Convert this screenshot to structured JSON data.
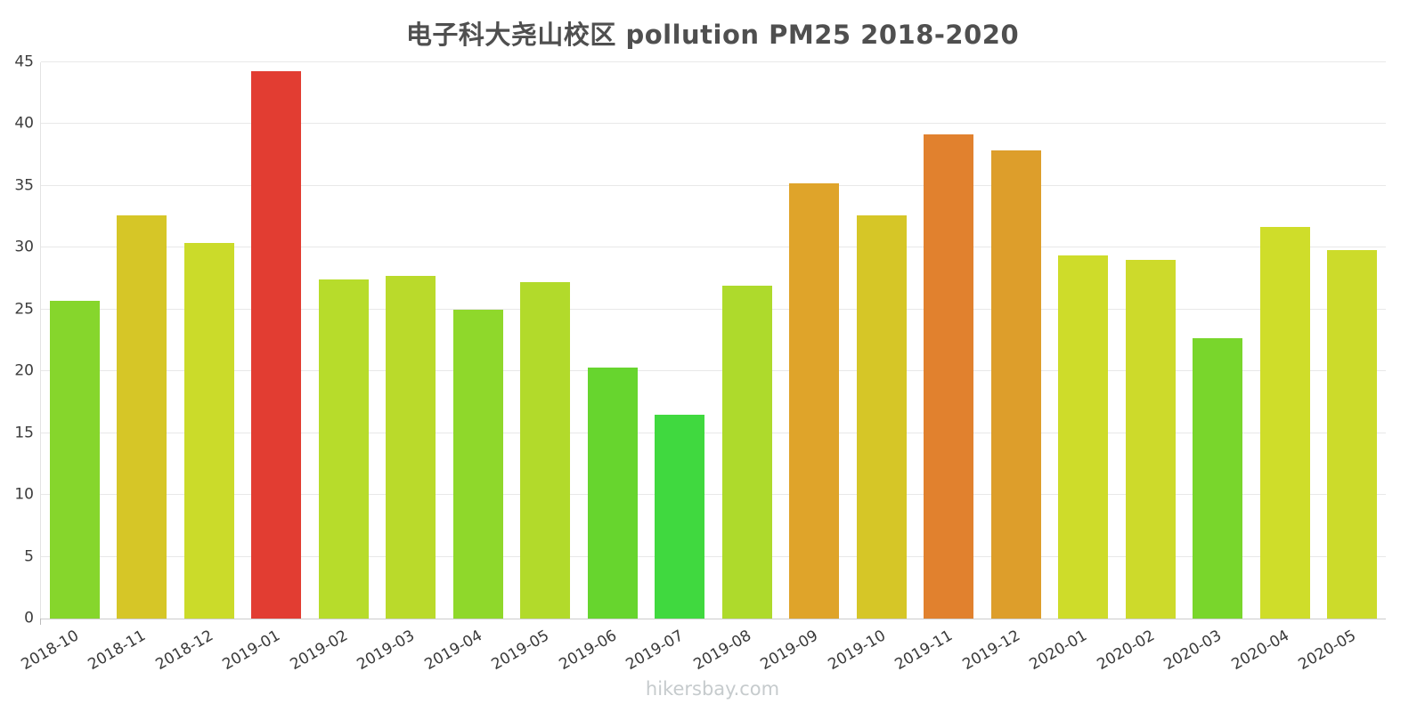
{
  "title": "电子科大尧山校区 pollution PM25 2018-2020",
  "footer": "hikersbay.com",
  "colors": {
    "title_text": "#4f4f4f",
    "axis_text": "#3a3a3a",
    "gridline": "#e8e8e8",
    "axis_line": "#cccccc",
    "footer_text": "#c6cbcd",
    "background": "#ffffff"
  },
  "chart_data": {
    "type": "bar",
    "title": "电子科大尧山校区 pollution PM25 2018-2020",
    "xlabel": "",
    "ylabel": "",
    "ylim": [
      0,
      45
    ],
    "yticks": [
      0,
      5,
      10,
      15,
      20,
      25,
      30,
      35,
      40,
      45
    ],
    "grid": "horizontal",
    "legend": "none",
    "x_tick_rotation_deg": -30,
    "categories": [
      "2018-10",
      "2018-11",
      "2018-12",
      "2019-01",
      "2019-02",
      "2019-03",
      "2019-04",
      "2019-05",
      "2019-06",
      "2019-07",
      "2019-08",
      "2019-09",
      "2019-10",
      "2019-11",
      "2019-12",
      "2020-01",
      "2020-02",
      "2020-03",
      "2020-04",
      "2020-05"
    ],
    "values": [
      25.7,
      32.6,
      30.4,
      44.3,
      27.4,
      27.7,
      25.0,
      27.2,
      20.3,
      16.5,
      26.9,
      35.2,
      32.6,
      39.2,
      37.9,
      29.4,
      29.0,
      22.7,
      31.7,
      29.8
    ],
    "bar_colors": [
      "#86d62c",
      "#d6c627",
      "#cbdb2a",
      "#e23d32",
      "#b7dc2b",
      "#bada2b",
      "#8fd82b",
      "#b2da2b",
      "#67d52e",
      "#40d93f",
      "#aeda2c",
      "#dfa42a",
      "#d6c627",
      "#e1812e",
      "#dd9e2b",
      "#cedc2a",
      "#cdda2b",
      "#79d62c",
      "#cfdd2a",
      "#ccdb2b"
    ]
  }
}
